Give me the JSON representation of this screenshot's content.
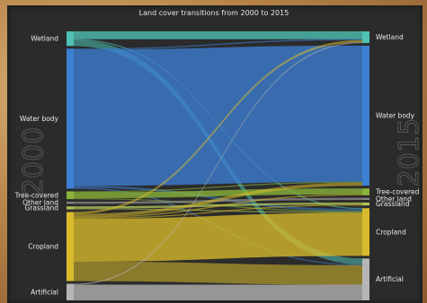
{
  "title": "Land cover transitions from 2000 to 2015",
  "left_year": "2000",
  "right_year": "2015",
  "left_nodes": [
    {
      "id": "wetland",
      "label": "Wetland",
      "color": "#4fc1b5"
    },
    {
      "id": "water",
      "label": "Water body",
      "color": "#3d7fd3"
    },
    {
      "id": "tree",
      "label": "Tree-covered",
      "color": "#8bb53a"
    },
    {
      "id": "other",
      "label": "Other land",
      "color": "#8a8a8a"
    },
    {
      "id": "grass",
      "label": "Grassland",
      "color": "#b0c45a"
    },
    {
      "id": "crop",
      "label": "Cropland",
      "color": "#d8bb2c"
    },
    {
      "id": "art",
      "label": "Artificial",
      "color": "#b5b5b5"
    }
  ],
  "right_nodes": [
    {
      "id": "wetland",
      "label": "Wetland",
      "color": "#4fc1b5"
    },
    {
      "id": "water",
      "label": "Water body",
      "color": "#3d7fd3"
    },
    {
      "id": "tree",
      "label": "Tree-covered",
      "color": "#8bb53a"
    },
    {
      "id": "other",
      "label": "Other land",
      "color": "#8a8a8a"
    },
    {
      "id": "grass",
      "label": "Grassland",
      "color": "#b0c45a"
    },
    {
      "id": "crop",
      "label": "Cropland",
      "color": "#d8bb2c"
    },
    {
      "id": "art",
      "label": "Artificial",
      "color": "#b5b5b5"
    }
  ],
  "flows": [
    {
      "from": "wetland",
      "to": "wetland",
      "value": 8
    },
    {
      "from": "wetland",
      "to": "art",
      "value": 6
    },
    {
      "from": "wetland",
      "to": "crop",
      "value": 1
    },
    {
      "from": "water",
      "to": "water",
      "value": 140
    },
    {
      "from": "water",
      "to": "wetland",
      "value": 1
    },
    {
      "from": "water",
      "to": "crop",
      "value": 2
    },
    {
      "from": "water",
      "to": "art",
      "value": 1
    },
    {
      "from": "tree",
      "to": "tree",
      "value": 6
    },
    {
      "from": "tree",
      "to": "crop",
      "value": 1
    },
    {
      "from": "tree",
      "to": "water",
      "value": 1
    },
    {
      "from": "other",
      "to": "other",
      "value": 2
    },
    {
      "from": "grass",
      "to": "grass",
      "value": 2
    },
    {
      "from": "grass",
      "to": "crop",
      "value": 1
    },
    {
      "from": "crop",
      "to": "crop",
      "value": 44
    },
    {
      "from": "crop",
      "to": "art",
      "value": 20
    },
    {
      "from": "crop",
      "to": "wetland",
      "value": 2
    },
    {
      "from": "crop",
      "to": "water",
      "value": 3
    },
    {
      "from": "crop",
      "to": "tree",
      "value": 1
    },
    {
      "from": "crop",
      "to": "grass",
      "value": 1
    },
    {
      "from": "art",
      "to": "art",
      "value": 16
    },
    {
      "from": "art",
      "to": "wetland",
      "value": 1
    }
  ]
}
